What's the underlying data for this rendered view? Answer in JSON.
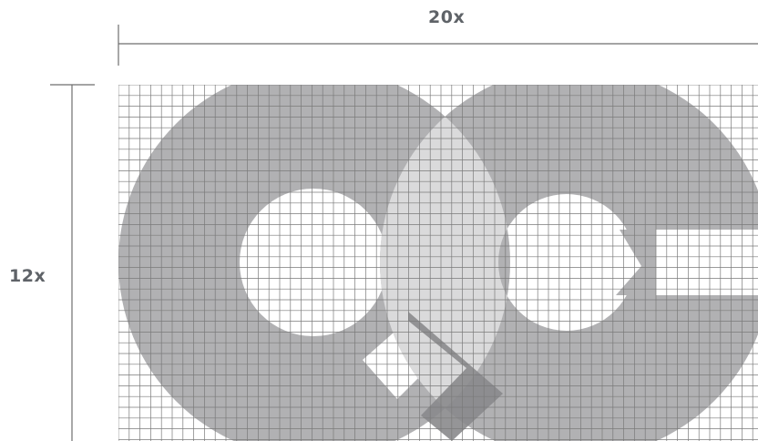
{
  "dimensions": {
    "width_label": "20x",
    "height_label": "12x"
  },
  "logo": {
    "mark": "QC",
    "grid_columns": 20,
    "grid_rows": 12
  },
  "colors": {
    "text": "#5f6368",
    "ruler": "#6e6e6e",
    "shape": "#b1b1b3",
    "overlap": "#dadadb",
    "tail": "#8a8a8c",
    "grid": "#7a7a7a"
  }
}
